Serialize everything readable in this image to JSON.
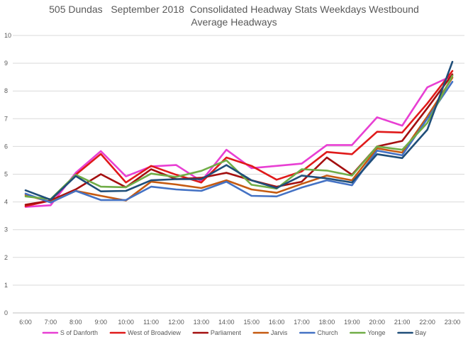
{
  "chart_data": {
    "type": "line",
    "title": "505 Dundas   September 2018  Consolidated Headway Stats Weekdays Westbound",
    "subtitle": "Average Headways",
    "xlabel": "",
    "ylabel": "",
    "ylim": [
      0,
      10
    ],
    "yticks": [
      "0",
      "1",
      "2",
      "3",
      "4",
      "5",
      "6",
      "7",
      "8",
      "9",
      "10"
    ],
    "grid": true,
    "legend_position": "bottom",
    "categories": [
      "6:00",
      "7:00",
      "8:00",
      "9:00",
      "10:00",
      "11:00",
      "12:00",
      "13:00",
      "14:00",
      "15:00",
      "16:00",
      "17:00",
      "18:00",
      "19:00",
      "20:00",
      "21:00",
      "22:00",
      "23:00"
    ],
    "series": [
      {
        "name": "S of Danforth",
        "color": "#e83fd3",
        "values": [
          3.82,
          3.88,
          5.05,
          5.83,
          4.92,
          5.28,
          5.33,
          4.75,
          5.88,
          5.22,
          5.3,
          5.38,
          6.05,
          6.05,
          7.05,
          6.75,
          8.13,
          8.55
        ]
      },
      {
        "name": "West of Broadview",
        "color": "#e01a1a",
        "values": [
          3.85,
          4.05,
          4.98,
          5.73,
          4.7,
          5.3,
          4.98,
          4.7,
          5.6,
          5.3,
          4.8,
          5.1,
          5.8,
          5.72,
          6.53,
          6.5,
          7.55,
          8.72
        ]
      },
      {
        "name": "Parliament",
        "color": "#a40f0f",
        "values": [
          3.9,
          4.05,
          4.45,
          5.0,
          4.53,
          5.18,
          4.82,
          4.87,
          5.05,
          4.78,
          4.55,
          4.73,
          5.6,
          4.98,
          6.0,
          6.2,
          7.38,
          8.6
        ]
      },
      {
        "name": "Jarvis",
        "color": "#c55a11",
        "values": [
          4.25,
          4.0,
          4.4,
          4.22,
          4.05,
          4.73,
          4.63,
          4.5,
          4.78,
          4.45,
          4.33,
          4.65,
          4.95,
          4.78,
          5.93,
          5.78,
          7.08,
          8.48
        ]
      },
      {
        "name": "Church",
        "color": "#4472c4",
        "values": [
          4.3,
          3.98,
          4.4,
          4.07,
          4.07,
          4.55,
          4.45,
          4.4,
          4.73,
          4.22,
          4.2,
          4.52,
          4.78,
          4.6,
          5.85,
          5.68,
          7.0,
          8.33
        ]
      },
      {
        "name": "Yonge",
        "color": "#70ad47",
        "values": [
          4.2,
          4.1,
          4.98,
          4.55,
          4.53,
          5.02,
          4.9,
          5.12,
          5.5,
          4.62,
          4.48,
          5.18,
          5.13,
          4.95,
          6.0,
          5.88,
          6.85,
          8.55
        ]
      },
      {
        "name": "Bay",
        "color": "#1f4e79",
        "values": [
          4.42,
          4.08,
          4.93,
          4.38,
          4.4,
          4.78,
          4.82,
          4.82,
          5.33,
          4.78,
          4.5,
          4.95,
          4.85,
          4.7,
          5.72,
          5.58,
          6.6,
          9.05
        ]
      }
    ]
  }
}
